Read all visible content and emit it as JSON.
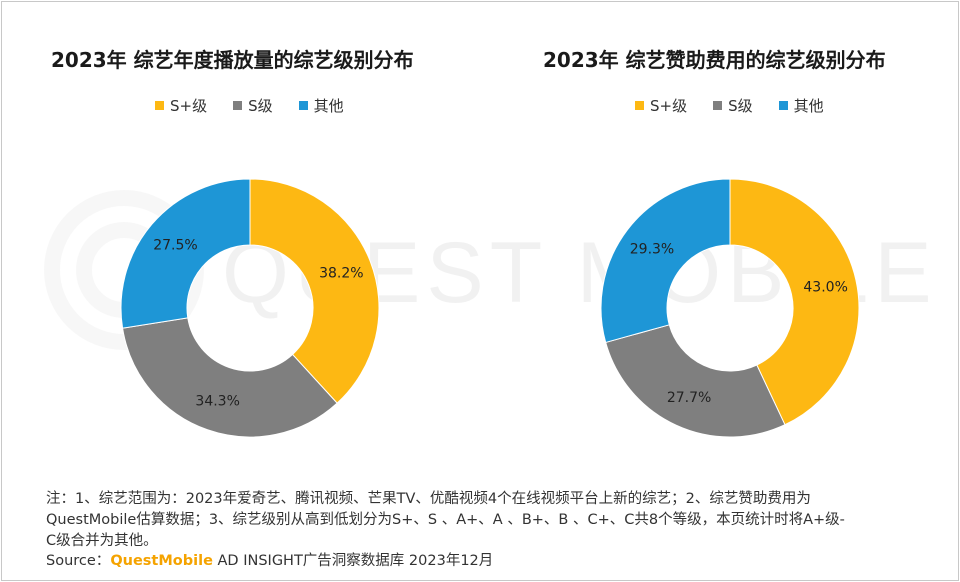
{
  "colors": {
    "s_plus": "#fdb813",
    "s": "#7f7f7f",
    "other": "#1e96d6",
    "brand": "#f5a300"
  },
  "watermark_text": "QUEST MOBILE",
  "chart_data": [
    {
      "type": "pie",
      "variant": "donut",
      "title": "2023年 综艺年度播放量的综艺级别分布",
      "legend": [
        "S+级",
        "S级",
        "其他"
      ],
      "legend_position": "top",
      "slices": [
        {
          "name": "S+级",
          "value": 38.2,
          "label": "38.2%"
        },
        {
          "name": "S级",
          "value": 34.3,
          "label": "34.3%"
        },
        {
          "name": "其他",
          "value": 27.5,
          "label": "27.5%"
        }
      ]
    },
    {
      "type": "pie",
      "variant": "donut",
      "title": "2023年 综艺赞助费用的综艺级别分布",
      "legend": [
        "S+级",
        "S级",
        "其他"
      ],
      "legend_position": "top",
      "slices": [
        {
          "name": "S+级",
          "value": 43.0,
          "label": "43.0%"
        },
        {
          "name": "S级",
          "value": 27.7,
          "label": "27.7%"
        },
        {
          "name": "其他",
          "value": 29.3,
          "label": "29.3%"
        }
      ]
    }
  ],
  "notes": {
    "line1": "注：1、综艺范围为：2023年爱奇艺、腾讯视频、芒果TV、优酷视频4个在线视频平台上新的综艺；2、综艺赞助费用为",
    "line2": "QuestMobile估算数据；3、综艺级别从高到低划分为S+、S 、A+、A 、B+、B 、C+、C共8个等级，本页统计时将A+级-",
    "line3": "C级合并为其他。"
  },
  "source": {
    "prefix": "Source：",
    "brand": "QuestMobile",
    "rest": " AD INSIGHT广告洞察数据库 2023年12月"
  }
}
